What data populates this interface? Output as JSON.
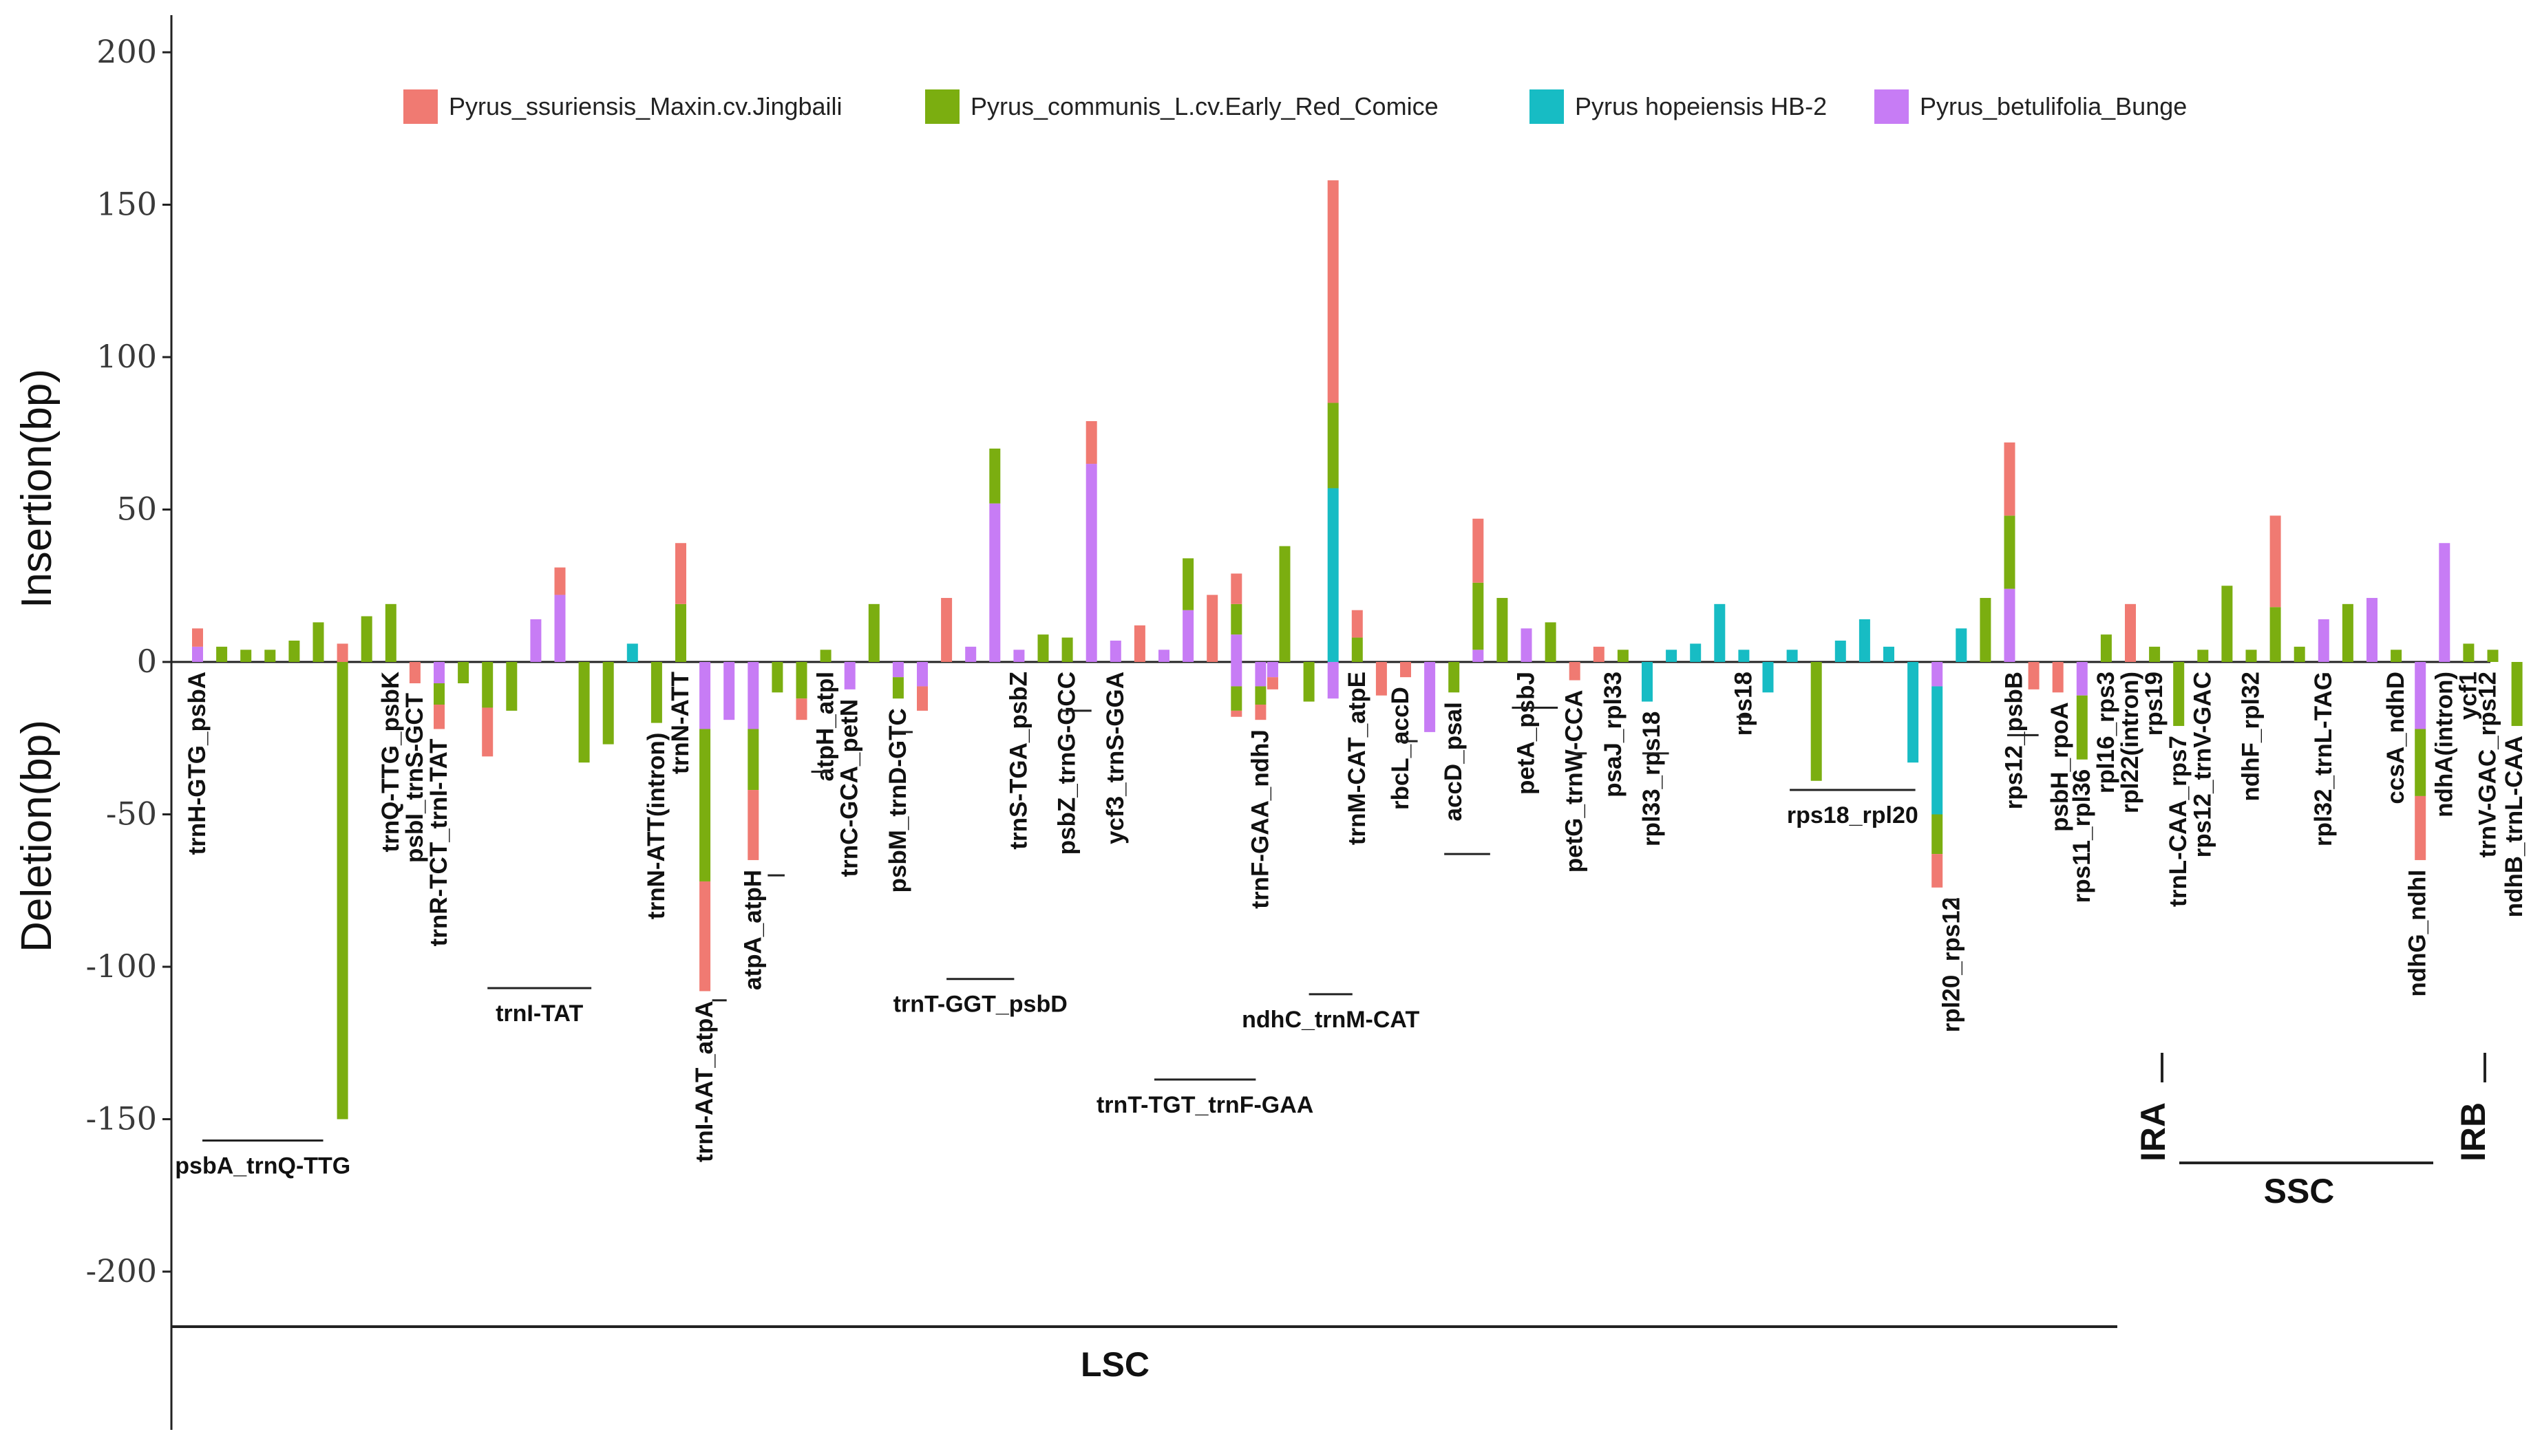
{
  "chart_data": {
    "type": "bar",
    "stacked": true,
    "title": "",
    "ylabel_top": "Insertion(bp)",
    "ylabel_bottom": "Deletion(bp)",
    "ylim": [
      -215,
      205
    ],
    "yticks": [
      200,
      150,
      100,
      50,
      0,
      -50,
      -100,
      -150,
      -200
    ],
    "legend_position": "top",
    "series": [
      {
        "name": "Pyrus_ssuriensis_Maxin.cv.Jingbaili",
        "color": "#F07A72"
      },
      {
        "name": "Pyrus_communis_L.cv.Early_Red_Comice",
        "color": "#7BAE10"
      },
      {
        "name": "Pyrus hopeiensis HB-2",
        "color": "#17BCC4"
      },
      {
        "name": "Pyrus_betulifolia_Bunge",
        "color": "#C77CF5"
      }
    ],
    "bars": [
      {
        "x": 1,
        "segs": [
          [
            3,
            5
          ],
          [
            0,
            6
          ]
        ]
      },
      {
        "x": 2,
        "segs": [
          [
            1,
            5
          ]
        ]
      },
      {
        "x": 3,
        "segs": [
          [
            1,
            4
          ]
        ]
      },
      {
        "x": 4,
        "segs": [
          [
            1,
            4
          ]
        ]
      },
      {
        "x": 5,
        "segs": [
          [
            1,
            7
          ]
        ]
      },
      {
        "x": 6,
        "segs": [
          [
            1,
            13
          ]
        ]
      },
      {
        "x": 7,
        "segs": [
          [
            0,
            6
          ]
        ]
      },
      {
        "x": 7,
        "segs": [
          [
            1,
            -150
          ]
        ]
      },
      {
        "x": 8,
        "segs": [
          [
            1,
            15
          ]
        ]
      },
      {
        "x": 9,
        "segs": [
          [
            1,
            19
          ]
        ]
      },
      {
        "x": 10,
        "segs": [
          [
            0,
            -7
          ]
        ]
      },
      {
        "x": 11,
        "segs": [
          [
            3,
            -7
          ],
          [
            1,
            -7
          ],
          [
            0,
            -8
          ]
        ]
      },
      {
        "x": 12,
        "segs": [
          [
            1,
            -7
          ]
        ]
      },
      {
        "x": 13,
        "segs": [
          [
            1,
            -15
          ],
          [
            0,
            -16
          ]
        ]
      },
      {
        "x": 14,
        "segs": [
          [
            1,
            -16
          ]
        ]
      },
      {
        "x": 15,
        "segs": [
          [
            3,
            14
          ]
        ]
      },
      {
        "x": 16,
        "segs": [
          [
            3,
            22
          ],
          [
            0,
            9
          ]
        ]
      },
      {
        "x": 17,
        "segs": [
          [
            1,
            -33
          ]
        ]
      },
      {
        "x": 18,
        "segs": [
          [
            1,
            -27
          ]
        ]
      },
      {
        "x": 19,
        "segs": [
          [
            2,
            6
          ]
        ]
      },
      {
        "x": 20,
        "segs": [
          [
            1,
            -20
          ]
        ]
      },
      {
        "x": 21,
        "segs": [
          [
            1,
            19
          ],
          [
            0,
            20
          ]
        ]
      },
      {
        "x": 22,
        "segs": [
          [
            3,
            -22
          ],
          [
            1,
            -50
          ],
          [
            0,
            -36
          ]
        ]
      },
      {
        "x": 23,
        "segs": [
          [
            3,
            -19
          ]
        ]
      },
      {
        "x": 24,
        "segs": [
          [
            3,
            -22
          ],
          [
            1,
            -20
          ],
          [
            0,
            -23
          ]
        ]
      },
      {
        "x": 25,
        "segs": [
          [
            1,
            -10
          ]
        ]
      },
      {
        "x": 26,
        "segs": [
          [
            1,
            -12
          ],
          [
            0,
            -7
          ]
        ]
      },
      {
        "x": 27,
        "segs": [
          [
            1,
            4
          ]
        ]
      },
      {
        "x": 28,
        "segs": [
          [
            3,
            -9
          ]
        ]
      },
      {
        "x": 29,
        "segs": [
          [
            1,
            19
          ]
        ]
      },
      {
        "x": 30,
        "segs": [
          [
            3,
            -5
          ],
          [
            1,
            -7
          ]
        ]
      },
      {
        "x": 31,
        "segs": [
          [
            3,
            -8
          ],
          [
            0,
            -8
          ]
        ]
      },
      {
        "x": 32,
        "segs": [
          [
            0,
            21
          ]
        ]
      },
      {
        "x": 33,
        "segs": [
          [
            3,
            5
          ]
        ]
      },
      {
        "x": 34,
        "segs": [
          [
            3,
            52
          ],
          [
            1,
            18
          ]
        ]
      },
      {
        "x": 35,
        "segs": [
          [
            3,
            4
          ]
        ]
      },
      {
        "x": 36,
        "segs": [
          [
            1,
            9
          ]
        ]
      },
      {
        "x": 37,
        "segs": [
          [
            1,
            8
          ]
        ]
      },
      {
        "x": 38,
        "segs": [
          [
            3,
            65
          ],
          [
            0,
            14
          ]
        ]
      },
      {
        "x": 39,
        "segs": [
          [
            3,
            7
          ]
        ]
      },
      {
        "x": 40,
        "segs": [
          [
            0,
            12
          ]
        ]
      },
      {
        "x": 41,
        "segs": [
          [
            3,
            4
          ]
        ]
      },
      {
        "x": 42,
        "segs": [
          [
            3,
            17
          ],
          [
            1,
            17
          ]
        ]
      },
      {
        "x": 43,
        "segs": [
          [
            0,
            22
          ]
        ]
      },
      {
        "x": 44,
        "segs": [
          [
            3,
            9
          ],
          [
            1,
            10
          ],
          [
            0,
            10
          ]
        ]
      },
      {
        "x": 44,
        "segs": [
          [
            3,
            -8
          ],
          [
            1,
            -8
          ],
          [
            0,
            -2
          ]
        ]
      },
      {
        "x": 45,
        "segs": [
          [
            3,
            -8
          ],
          [
            1,
            -6
          ],
          [
            0,
            -5
          ]
        ]
      },
      {
        "x": 45.5,
        "segs": [
          [
            3,
            -5
          ],
          [
            0,
            -4
          ]
        ]
      },
      {
        "x": 46,
        "segs": [
          [
            1,
            38
          ]
        ]
      },
      {
        "x": 47,
        "segs": [
          [
            1,
            -13
          ]
        ]
      },
      {
        "x": 48,
        "segs": [
          [
            2,
            57
          ],
          [
            1,
            28
          ],
          [
            0,
            73
          ]
        ]
      },
      {
        "x": 48,
        "segs": [
          [
            3,
            -12
          ]
        ]
      },
      {
        "x": 49,
        "segs": [
          [
            1,
            8
          ],
          [
            0,
            9
          ]
        ]
      },
      {
        "x": 50,
        "segs": [
          [
            0,
            -11
          ]
        ]
      },
      {
        "x": 51,
        "segs": [
          [
            0,
            -5
          ]
        ]
      },
      {
        "x": 52,
        "segs": [
          [
            3,
            -23
          ]
        ]
      },
      {
        "x": 53,
        "segs": [
          [
            1,
            -10
          ]
        ]
      },
      {
        "x": 54,
        "segs": [
          [
            3,
            4
          ],
          [
            1,
            22
          ],
          [
            0,
            21
          ]
        ]
      },
      {
        "x": 55,
        "segs": [
          [
            1,
            21
          ]
        ]
      },
      {
        "x": 56,
        "segs": [
          [
            3,
            11
          ]
        ]
      },
      {
        "x": 57,
        "segs": [
          [
            1,
            13
          ]
        ]
      },
      {
        "x": 58,
        "segs": [
          [
            0,
            -6
          ]
        ]
      },
      {
        "x": 59,
        "segs": [
          [
            0,
            5
          ]
        ]
      },
      {
        "x": 60,
        "segs": [
          [
            1,
            4
          ]
        ]
      },
      {
        "x": 61,
        "segs": [
          [
            2,
            -13
          ]
        ]
      },
      {
        "x": 62,
        "segs": [
          [
            2,
            4
          ]
        ]
      },
      {
        "x": 63,
        "segs": [
          [
            2,
            6
          ]
        ]
      },
      {
        "x": 64,
        "segs": [
          [
            2,
            19
          ]
        ]
      },
      {
        "x": 65,
        "segs": [
          [
            2,
            4
          ]
        ]
      },
      {
        "x": 66,
        "segs": [
          [
            2,
            -10
          ]
        ]
      },
      {
        "x": 67,
        "segs": [
          [
            2,
            4
          ]
        ]
      },
      {
        "x": 68,
        "segs": [
          [
            1,
            -39
          ]
        ]
      },
      {
        "x": 69,
        "segs": [
          [
            2,
            7
          ]
        ]
      },
      {
        "x": 70,
        "segs": [
          [
            2,
            14
          ]
        ]
      },
      {
        "x": 71,
        "segs": [
          [
            2,
            5
          ]
        ]
      },
      {
        "x": 72,
        "segs": [
          [
            2,
            -33
          ]
        ]
      },
      {
        "x": 73,
        "segs": [
          [
            3,
            -8
          ],
          [
            2,
            -42
          ],
          [
            1,
            -13
          ],
          [
            0,
            -11
          ]
        ]
      },
      {
        "x": 74,
        "segs": [
          [
            2,
            11
          ]
        ]
      },
      {
        "x": 75,
        "segs": [
          [
            1,
            21
          ]
        ]
      },
      {
        "x": 76,
        "segs": [
          [
            3,
            24
          ],
          [
            1,
            24
          ],
          [
            0,
            24
          ]
        ]
      },
      {
        "x": 77,
        "segs": [
          [
            0,
            -9
          ]
        ]
      },
      {
        "x": 78,
        "segs": [
          [
            0,
            -10
          ]
        ]
      },
      {
        "x": 79,
        "segs": [
          [
            3,
            -11
          ],
          [
            1,
            -21
          ]
        ]
      },
      {
        "x": 80,
        "segs": [
          [
            1,
            9
          ]
        ]
      },
      {
        "x": 81,
        "segs": [
          [
            0,
            19
          ]
        ]
      },
      {
        "x": 82,
        "segs": [
          [
            1,
            5
          ]
        ]
      },
      {
        "x": 83,
        "segs": [
          [
            1,
            -21
          ]
        ]
      },
      {
        "x": 84,
        "segs": [
          [
            1,
            4
          ]
        ]
      },
      {
        "x": 85,
        "segs": [
          [
            1,
            25
          ]
        ]
      },
      {
        "x": 86,
        "segs": [
          [
            1,
            4
          ]
        ]
      },
      {
        "x": 87,
        "segs": [
          [
            1,
            18
          ],
          [
            0,
            30
          ]
        ]
      },
      {
        "x": 88,
        "segs": [
          [
            1,
            5
          ]
        ]
      },
      {
        "x": 89,
        "segs": [
          [
            3,
            14
          ]
        ]
      },
      {
        "x": 90,
        "segs": [
          [
            1,
            19
          ]
        ]
      },
      {
        "x": 91,
        "segs": [
          [
            3,
            21
          ]
        ]
      },
      {
        "x": 92,
        "segs": [
          [
            1,
            4
          ]
        ]
      },
      {
        "x": 93,
        "segs": [
          [
            3,
            -22
          ],
          [
            1,
            -22
          ],
          [
            0,
            -21
          ]
        ]
      },
      {
        "x": 94,
        "segs": [
          [
            3,
            39
          ]
        ]
      },
      {
        "x": 95,
        "segs": [
          [
            1,
            6
          ]
        ]
      },
      {
        "x": 96,
        "segs": [
          [
            1,
            4
          ]
        ]
      },
      {
        "x": 97,
        "segs": [
          [
            1,
            -21
          ]
        ]
      }
    ]
  },
  "gene_labels": [
    {
      "text": "trnH-GTG_psbA",
      "x": 1
    },
    {
      "text": "trnQ-TTG_psbK",
      "x": 9
    },
    {
      "text": "psbI_trnS-GCT",
      "x": 10
    },
    {
      "text": "trnR-TCT_trnI-TAT",
      "x": 11
    },
    {
      "text": "trnN-ATT",
      "x": 21
    },
    {
      "text": "trnN-ATT(intron)",
      "x": 20
    },
    {
      "text": "trnI-AAT_atpA",
      "x": 22
    },
    {
      "text": "atpA_atpH",
      "x": 24
    },
    {
      "text": "atpH_atpI",
      "x": 27
    },
    {
      "text": "trnC-GCA_petN",
      "x": 28
    },
    {
      "text": "psbM_trnD-GTC",
      "x": 30
    },
    {
      "text": "trnS-TGA_psbZ",
      "x": 35
    },
    {
      "text": "psbZ_trnG-GCC",
      "x": 37
    },
    {
      "text": "ycf3_trnS-GGA",
      "x": 39
    },
    {
      "text": "trnF-GAA_ndhJ",
      "x": 45
    },
    {
      "text": "trnM-CAT_atpE",
      "x": 49
    },
    {
      "text": "rbcL_accD",
      "x": 50.8
    },
    {
      "text": "accD_psaI",
      "x": 53
    },
    {
      "text": "petA_psbJ",
      "x": 56
    },
    {
      "text": "petG_trnW-CCA",
      "x": 58
    },
    {
      "text": "psaJ_rpl33",
      "x": 59.6
    },
    {
      "text": "rpl33_rps18",
      "x": 61.2
    },
    {
      "text": "rps18",
      "x": 65
    },
    {
      "text": "rpl20_rps12",
      "x": 73.6
    },
    {
      "text": "rps12_psbB",
      "x": 76.2
    },
    {
      "text": "psbH_rpoA",
      "x": 78.1
    },
    {
      "text": "rps11_rpl36",
      "x": 79
    },
    {
      "text": "rpl16_rps3",
      "x": 80
    },
    {
      "text": "rpl22(intron)",
      "x": 81
    },
    {
      "text": "rps19",
      "x": 82
    },
    {
      "text": "trnL-CAA_rps7",
      "x": 83
    },
    {
      "text": "rps12_trnV-GAC",
      "x": 84
    },
    {
      "text": "ndhF_rpl32",
      "x": 86
    },
    {
      "text": "rpl32_trnL-TAG",
      "x": 89
    },
    {
      "text": "ccsA_ndhD",
      "x": 92
    },
    {
      "text": "ndhG_ndhI",
      "x": 92.9
    },
    {
      "text": "ndhA(intron)",
      "x": 94
    },
    {
      "text": "ycf1",
      "x": 95
    },
    {
      "text": "trnV-GAC_rps12",
      "x": 95.8
    },
    {
      "text": "ndhB_trnL-CAA",
      "x": 96.9
    }
  ],
  "region_labels": [
    {
      "text": "psbA_trnQ-TTG",
      "x1": 1.2,
      "x2": 6.2,
      "y": -157
    },
    {
      "text": "trnI-TAT",
      "x1": 13,
      "x2": 17.3,
      "y": -107
    },
    {
      "text": "trnT-GGT_psbD",
      "x1": 32,
      "x2": 34.8,
      "y": -104
    },
    {
      "text": "ndhC_trnM-CAT",
      "x1": 47,
      "x2": 48.8,
      "y": -109
    },
    {
      "text": "trnT-TGT_trnF-GAA",
      "x1": 40.6,
      "x2": 44.8,
      "y": -137
    },
    {
      "text": "rps18_rpl20",
      "x1": 66.9,
      "x2": 72.1,
      "y": -42
    }
  ],
  "regions": [
    {
      "text": "LSC"
    },
    {
      "text": "IRA"
    },
    {
      "text": "SSC"
    },
    {
      "text": "IRB"
    }
  ]
}
